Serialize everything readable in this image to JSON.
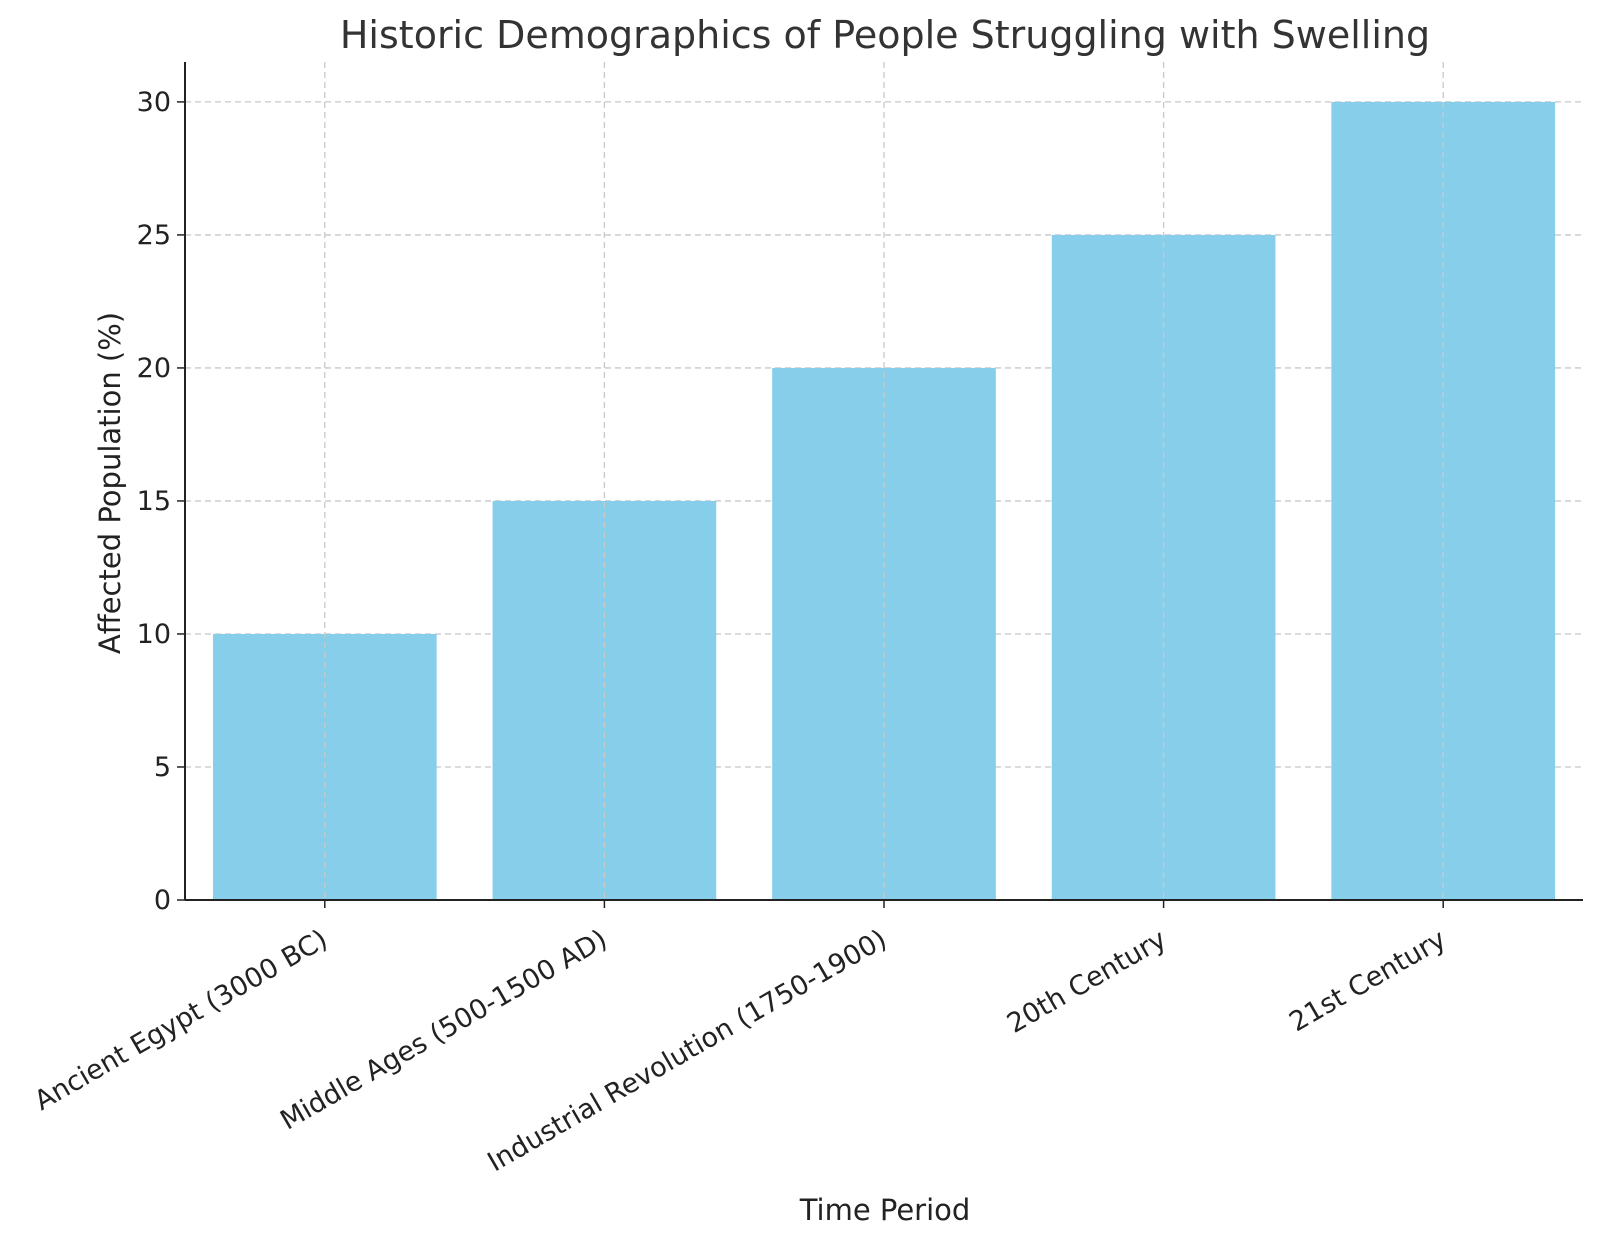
{
  "chart_data": {
    "type": "bar",
    "title": "Historic Demographics of People Struggling with Swelling",
    "xlabel": "Time Period",
    "ylabel": "Affected Population (%)",
    "categories": [
      "Ancient Egypt (3000 BC)",
      "Middle Ages (500-1500 AD)",
      "Industrial Revolution (1750-1900)",
      "20th Century",
      "21st Century"
    ],
    "values": [
      10,
      15,
      20,
      25,
      30
    ],
    "ylim": [
      0,
      31.5
    ],
    "yticks": [
      0,
      5,
      10,
      15,
      20,
      25,
      30
    ],
    "grid": true,
    "colors": {
      "bar": "#87ceeb",
      "axis": "#222222",
      "grid": "#c8c8c8",
      "text": "#222222"
    }
  }
}
